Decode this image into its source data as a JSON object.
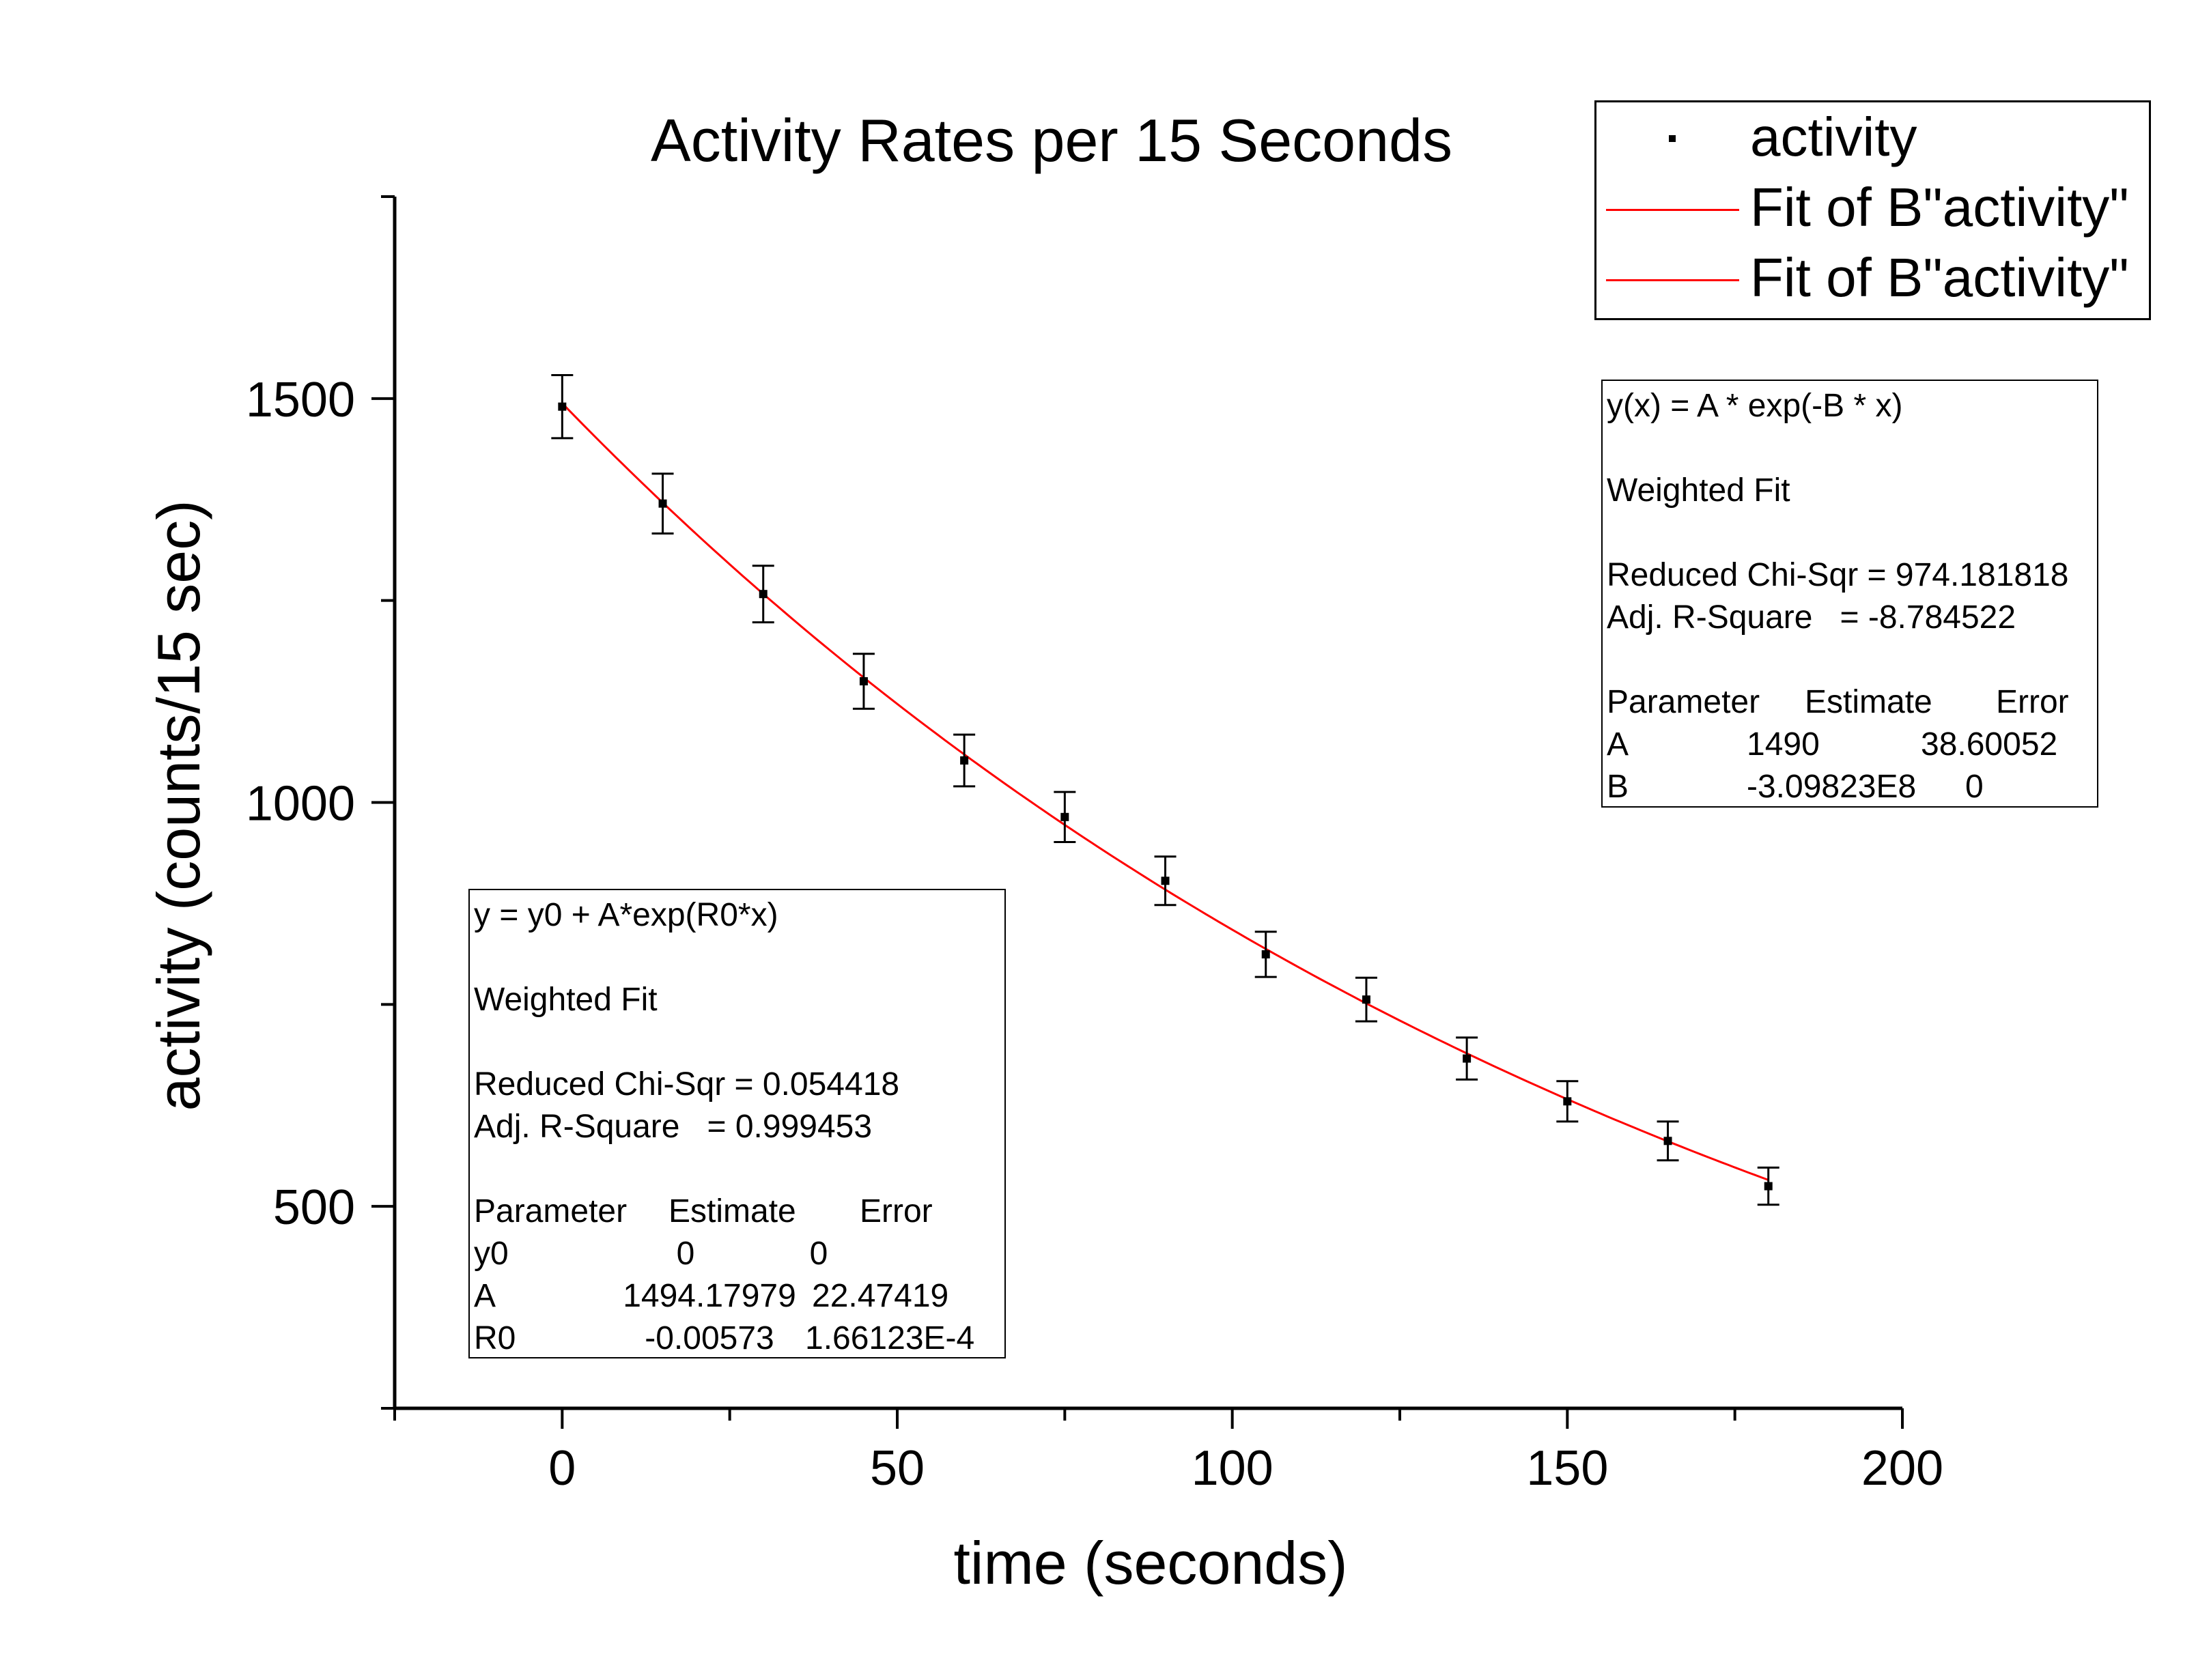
{
  "chart_data": {
    "type": "scatter",
    "title": "Activity Rates per 15 Seconds",
    "xlabel": "time (seconds)",
    "ylabel": "activity (counts/15 sec)",
    "xlim": [
      -25,
      200
    ],
    "ylim": [
      250,
      1750
    ],
    "xticks": [
      "0",
      "50",
      "100",
      "150",
      "200"
    ],
    "yticks": [
      "500",
      "1000",
      "1500"
    ],
    "series": [
      {
        "name": "activity",
        "marker": "square",
        "x": [
          0,
          15,
          30,
          45,
          60,
          75,
          90,
          105,
          120,
          135,
          150,
          165,
          180
        ],
        "y": [
          1490,
          1370,
          1258,
          1150,
          1052,
          982,
          903,
          812,
          756,
          683,
          630,
          581,
          525
        ],
        "yerr": [
          39,
          37,
          35,
          34,
          32,
          31,
          30,
          28,
          27,
          26,
          25,
          24,
          23
        ]
      },
      {
        "name": "Fit of B\"activity\"",
        "kind": "fit",
        "model": "y0 + A*exp(R0*x)",
        "params": {
          "y0": 0,
          "A": 1494.17979,
          "R0": -0.00573
        },
        "x_range": [
          0,
          180
        ],
        "color": "#ff0000"
      }
    ],
    "legend": {
      "placement": "top-right",
      "entries": [
        "activity",
        "Fit of B\"activity\"",
        "Fit of B\"activity\""
      ]
    },
    "grid": false
  },
  "fit_boxes": {
    "left": {
      "equation": "y = y0 + A*exp(R0*x)",
      "method": "Weighted Fit",
      "chi": "Reduced Chi-Sqr = 0.054418",
      "r2": "Adj. R-Square   = 0.999453",
      "header": [
        "Parameter",
        "Estimate",
        "Error"
      ],
      "rows": [
        [
          "y0",
          "0",
          "0"
        ],
        [
          "A",
          "1494.17979",
          "22.47419"
        ],
        [
          "R0",
          "-0.00573",
          "1.66123E-4"
        ]
      ]
    },
    "right": {
      "equation": "y(x) = A * exp(-B * x)",
      "method": "Weighted Fit",
      "chi": "Reduced Chi-Sqr = 974.181818",
      "r2": "Adj. R-Square   = -8.784522",
      "header": [
        "Parameter",
        "Estimate",
        "Error"
      ],
      "rows": [
        [
          "A",
          "1490",
          "38.60052"
        ],
        [
          "B",
          "-3.09823E8",
          "0"
        ]
      ]
    }
  },
  "colors": {
    "fit_line": "#ff0000",
    "points": "#000000",
    "axes": "#000000"
  }
}
